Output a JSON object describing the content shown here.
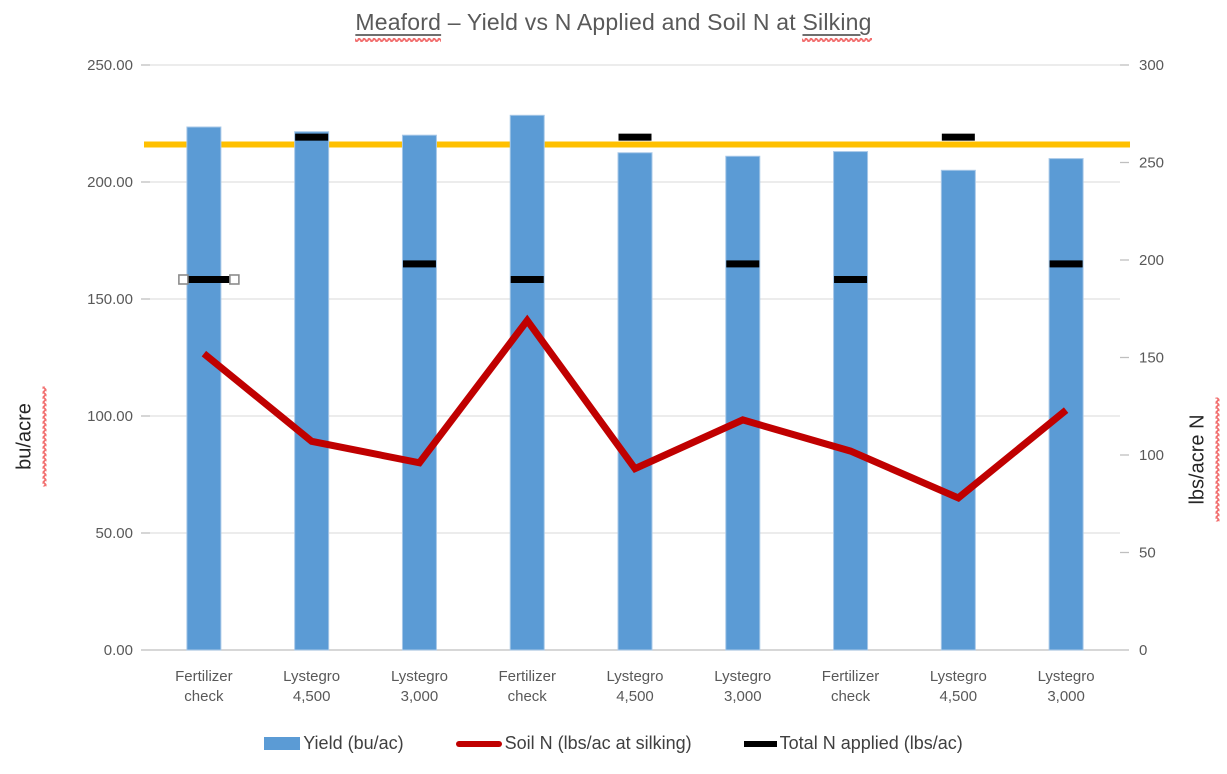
{
  "title": {
    "part1": "Meaford",
    "part2": " – Yield vs N Applied and Soil N at ",
    "part3": "Silking",
    "full": "Meaford – Yield vs N Applied and Soil N at Silking"
  },
  "chart_data": {
    "type": "bar",
    "subtype": "bar-with-line-and-dash-overlays-dual-axis",
    "title": "Meaford – Yield vs N Applied and Soil N at Silking",
    "categories": [
      "Fertilizer check",
      "Lystegro 4,500",
      "Lystegro 3,000",
      "Fertilizer check",
      "Lystegro 4,500",
      "Lystegro 3,000",
      "Fertilizer check",
      "Lystegro 4,500",
      "Lystegro 3,000"
    ],
    "series": [
      {
        "name": "Yield (bu/ac)",
        "type": "bar",
        "axis": "left",
        "color": "#5B9BD5",
        "values": [
          223.5,
          221.5,
          220,
          228.5,
          212.5,
          211,
          213,
          205,
          210
        ]
      },
      {
        "name": "Soil N (lbs/ac at silking)",
        "type": "line",
        "axis": "right",
        "color": "#C00000",
        "values": [
          152,
          107,
          96,
          169,
          93,
          118,
          102,
          78,
          123
        ]
      },
      {
        "name": "Total N applied (lbs/ac)",
        "type": "dash",
        "axis": "right",
        "color": "#000000",
        "values": [
          190,
          263,
          198,
          190,
          263,
          198,
          190,
          263,
          198
        ],
        "selected_point_index": 0
      }
    ],
    "target_line": {
      "axis": "left",
      "value": 216,
      "color": "#FFC000"
    },
    "left_axis": {
      "label": "bu/acre",
      "min": 0,
      "max": 250,
      "ticks": [
        {
          "value": 250,
          "label": "250.00"
        },
        {
          "value": 200,
          "label": "200.00"
        },
        {
          "value": 150,
          "label": "150.00"
        },
        {
          "value": 100,
          "label": "100.00"
        },
        {
          "value": 50,
          "label": "50.00"
        },
        {
          "value": 0,
          "label": "0.00"
        }
      ]
    },
    "right_axis": {
      "label": "lbs/acre N",
      "min": 0,
      "max": 300,
      "ticks": [
        {
          "value": 300,
          "label": "300"
        },
        {
          "value": 250,
          "label": "250"
        },
        {
          "value": 200,
          "label": "200"
        },
        {
          "value": 150,
          "label": "150"
        },
        {
          "value": 100,
          "label": "100"
        },
        {
          "value": 50,
          "label": "50"
        },
        {
          "value": 0,
          "label": "0"
        }
      ]
    },
    "legend_position": "bottom",
    "grid": true,
    "colors": {
      "bar_fill": "#5B9BD5",
      "bar_border": "#A8C8E8",
      "soil_n_line": "#C00000",
      "total_n_dash": "#000000",
      "target_line": "#FFC000",
      "gridline": "#E0E0E0",
      "axis_line": "#BFBFBF",
      "tick_text": "#595959",
      "title_text": "#595959",
      "legend_text": "#404040"
    }
  }
}
